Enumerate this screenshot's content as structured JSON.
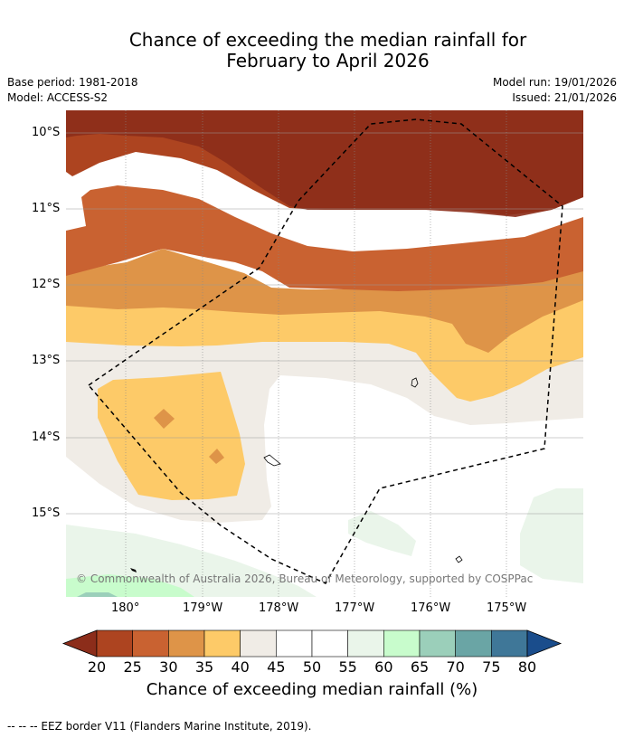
{
  "title": {
    "line1": "Chance of exceeding the median rainfall for",
    "line2": "February to April 2026"
  },
  "metadata": {
    "base_period": "Base period: 1981-2018",
    "model": "Model: ACCESS-S2",
    "model_run": "Model run: 19/01/2026",
    "issued": "Issued: 21/01/2026"
  },
  "map": {
    "lat_labels": [
      "10°S",
      "11°S",
      "12°S",
      "13°S",
      "14°S",
      "15°S"
    ],
    "lon_labels": [
      "180°",
      "179°W",
      "178°W",
      "177°W",
      "176°W",
      "175°W"
    ],
    "copyright": "© Commonwealth of Australia 2026, Bureau of Meteorology, supported by COSPPac"
  },
  "colorbar": {
    "labels": [
      "20",
      "25",
      "30",
      "35",
      "40",
      "45",
      "50",
      "55",
      "60",
      "65",
      "70",
      "75",
      "80"
    ],
    "colors": [
      "#8c2d1a",
      "#ad4420",
      "#c96231",
      "#de9448",
      "#fdca68",
      "#f0ece6",
      "#ffffff",
      "#ffffff",
      "#eaf5ea",
      "#c8fccc",
      "#9bcfba",
      "#6aa5a5",
      "#3f7798",
      "#1a4d8c"
    ],
    "title": "Chance of exceeding median rainfall (%)"
  },
  "footer": "--  --  -- EEZ border V11 (Flanders Marine Institute, 2019)."
}
